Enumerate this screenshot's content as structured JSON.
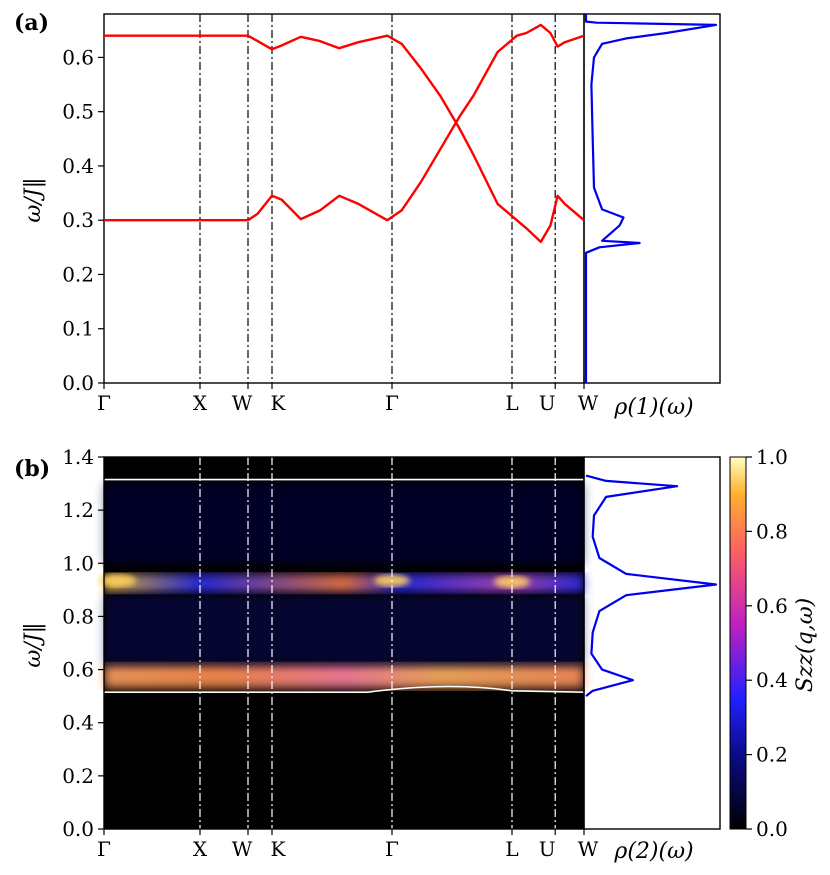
{
  "chart_data": [
    {
      "panel": "(a)",
      "type": "line",
      "ylabel": "ω/J‖",
      "ylim": [
        0.0,
        0.68
      ],
      "yticks": [
        "0.0",
        "0.1",
        "0.2",
        "0.3",
        "0.4",
        "0.5",
        "0.6"
      ],
      "xticks": [
        "Γ",
        "X",
        "W",
        "K",
        "Γ",
        "L",
        "U",
        "W"
      ],
      "series": [
        {
          "color": "#ff0000",
          "path_points": [
            [
              0,
              0.64
            ],
            [
              0.3,
              0.64
            ],
            [
              0.32,
              0.63
            ],
            [
              0.35,
              0.615
            ],
            [
              0.37,
              0.622
            ],
            [
              0.41,
              0.638
            ],
            [
              0.45,
              0.63
            ],
            [
              0.49,
              0.617
            ],
            [
              0.53,
              0.628
            ],
            [
              0.59,
              0.64
            ],
            [
              0.62,
              0.625
            ],
            [
              0.66,
              0.58
            ],
            [
              0.7,
              0.53
            ],
            [
              0.74,
              0.47
            ],
            [
              0.77,
              0.42
            ],
            [
              0.82,
              0.33
            ],
            [
              0.86,
              0.3
            ],
            [
              0.88,
              0.285
            ],
            [
              0.91,
              0.26
            ],
            [
              0.93,
              0.29
            ],
            [
              0.945,
              0.345
            ],
            [
              0.96,
              0.33
            ],
            [
              1.0,
              0.3
            ]
          ]
        },
        {
          "color": "#ff0000",
          "path_points": [
            [
              0,
              0.3
            ],
            [
              0.3,
              0.3
            ],
            [
              0.32,
              0.312
            ],
            [
              0.35,
              0.345
            ],
            [
              0.37,
              0.338
            ],
            [
              0.41,
              0.302
            ],
            [
              0.45,
              0.318
            ],
            [
              0.49,
              0.345
            ],
            [
              0.53,
              0.33
            ],
            [
              0.59,
              0.3
            ],
            [
              0.62,
              0.318
            ],
            [
              0.66,
              0.37
            ],
            [
              0.7,
              0.43
            ],
            [
              0.74,
              0.49
            ],
            [
              0.77,
              0.53
            ],
            [
              0.82,
              0.61
            ],
            [
              0.86,
              0.64
            ],
            [
              0.88,
              0.645
            ],
            [
              0.91,
              0.66
            ],
            [
              0.93,
              0.645
            ],
            [
              0.945,
              0.62
            ],
            [
              0.96,
              0.628
            ],
            [
              1.0,
              0.64
            ]
          ]
        }
      ],
      "dos_label": "ρ(1)(ω)",
      "dos_points": [
        [
          0,
          0.0
        ],
        [
          0,
          0.24
        ],
        [
          0.1,
          0.25
        ],
        [
          0.4,
          0.258
        ],
        [
          0.12,
          0.262
        ],
        [
          0.25,
          0.29
        ],
        [
          0.28,
          0.305
        ],
        [
          0.12,
          0.32
        ],
        [
          0.06,
          0.36
        ],
        [
          0.05,
          0.45
        ],
        [
          0.04,
          0.55
        ],
        [
          0.06,
          0.6
        ],
        [
          0.12,
          0.625
        ],
        [
          0.3,
          0.635
        ],
        [
          0.6,
          0.645
        ],
        [
          0.97,
          0.66
        ],
        [
          0.3,
          0.663
        ],
        [
          0.08,
          0.664
        ],
        [
          0,
          0.666
        ],
        [
          0,
          0.68
        ]
      ]
    },
    {
      "panel": "(b)",
      "type": "heatmap",
      "ylabel": "ω/J‖",
      "ylim": [
        0.0,
        1.4
      ],
      "yticks": [
        "0.0",
        "0.2",
        "0.4",
        "0.6",
        "0.8",
        "1.0",
        "1.2",
        "1.4"
      ],
      "xticks": [
        "Γ",
        "X",
        "W",
        "K",
        "Γ",
        "L",
        "U",
        "W"
      ],
      "colorbar": {
        "label": "Szz(q,ω)",
        "ticks": [
          "0.0",
          "0.2",
          "0.4",
          "0.6",
          "0.8",
          "1.0"
        ],
        "range": [
          0.0,
          1.0
        ]
      },
      "upper_bound": 1.315,
      "lower_bound": 0.515,
      "bands": [
        {
          "center": 0.925,
          "intensity": 0.55
        },
        {
          "center": 0.58,
          "intensity": 0.75
        }
      ],
      "dos_label": "ρ(2)(ω)",
      "dos_points": [
        [
          0,
          0.5
        ],
        [
          0.05,
          0.52
        ],
        [
          0.35,
          0.56
        ],
        [
          0.12,
          0.6
        ],
        [
          0.04,
          0.66
        ],
        [
          0.05,
          0.74
        ],
        [
          0.1,
          0.82
        ],
        [
          0.3,
          0.88
        ],
        [
          0.97,
          0.92
        ],
        [
          0.3,
          0.96
        ],
        [
          0.1,
          1.02
        ],
        [
          0.05,
          1.1
        ],
        [
          0.06,
          1.18
        ],
        [
          0.15,
          1.25
        ],
        [
          0.68,
          1.29
        ],
        [
          0.15,
          1.31
        ],
        [
          0,
          1.33
        ]
      ]
    }
  ]
}
